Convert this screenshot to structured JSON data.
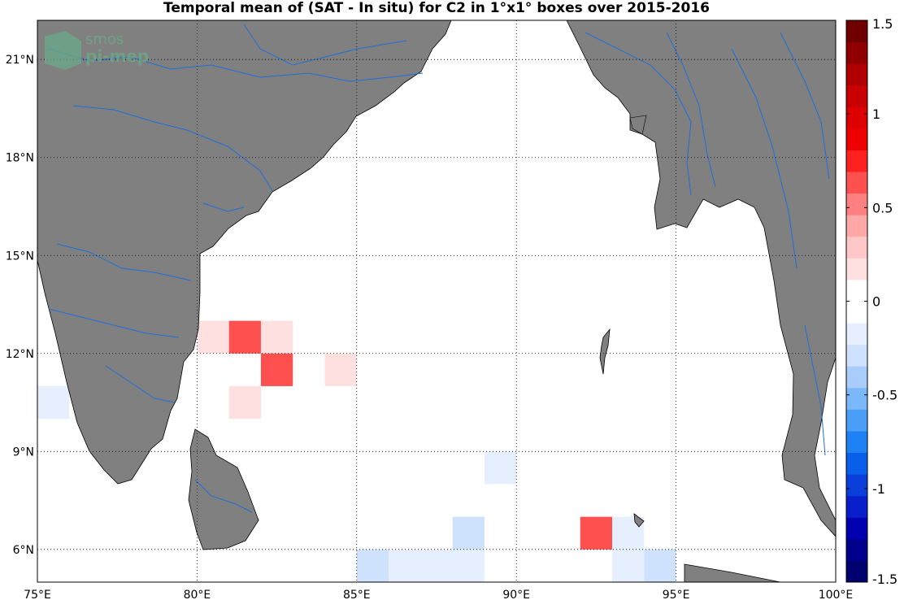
{
  "title": "Temporal mean of (SAT - In situ) for C2 in 1°x1° boxes over 2015-2016",
  "logo": {
    "line1": "smos",
    "line2": "pi-mep",
    "icon": "smos-pimep-logo"
  },
  "map": {
    "lon_range": [
      75,
      100
    ],
    "lat_range": [
      5,
      22.2
    ],
    "lon_ticks": [
      75,
      80,
      85,
      90,
      95,
      100
    ],
    "lat_ticks": [
      6,
      9,
      12,
      15,
      18,
      21
    ],
    "lon_tick_labels": [
      "75°E",
      "80°E",
      "85°E",
      "90°E",
      "95°E",
      "100°E"
    ],
    "lat_tick_labels": [
      "6°N",
      "9°N",
      "12°N",
      "15°N",
      "18°N",
      "21°N"
    ],
    "grid": true,
    "land_color": "#808080",
    "river_color": "#1f6fd8"
  },
  "chart_data": {
    "type": "heatmap",
    "title": "Temporal mean of (SAT - In situ) for C2 in 1°x1° boxes over 2015-2016",
    "cell_size_deg": 1,
    "cells": [
      {
        "lon": 80,
        "lat": 12,
        "value": 0.15
      },
      {
        "lon": 81,
        "lat": 12,
        "value": 0.65
      },
      {
        "lon": 82,
        "lat": 12,
        "value": 0.15
      },
      {
        "lon": 82,
        "lat": 11,
        "value": 0.65
      },
      {
        "lon": 84,
        "lat": 11,
        "value": 0.15
      },
      {
        "lon": 81,
        "lat": 10,
        "value": 0.15
      },
      {
        "lon": 75,
        "lat": 10,
        "value": -0.15
      },
      {
        "lon": 89,
        "lat": 8,
        "value": -0.15
      },
      {
        "lon": 88,
        "lat": 6,
        "value": -0.25
      },
      {
        "lon": 85,
        "lat": 5,
        "value": -0.25
      },
      {
        "lon": 86,
        "lat": 5,
        "value": -0.15
      },
      {
        "lon": 87,
        "lat": 5,
        "value": -0.15
      },
      {
        "lon": 88,
        "lat": 5,
        "value": -0.15
      },
      {
        "lon": 92,
        "lat": 6,
        "value": 0.65
      },
      {
        "lon": 93,
        "lat": 6,
        "value": -0.15
      },
      {
        "lon": 93,
        "lat": 5,
        "value": -0.15
      },
      {
        "lon": 94,
        "lat": 5,
        "value": -0.25
      }
    ],
    "colorbar": {
      "range": [
        -1.5,
        1.5
      ],
      "ticks": [
        -1.5,
        -1,
        -0.5,
        0,
        0.5,
        1,
        1.5
      ],
      "tick_labels": [
        "-1.5",
        "-1",
        "-0.5",
        "0",
        "0.5",
        "1",
        "1.5"
      ],
      "colors": [
        "#00006e",
        "#00008c",
        "#0000b0",
        "#0a1fcc",
        "#0a3fdc",
        "#0a5fea",
        "#1e82f5",
        "#4a9ef8",
        "#7ab8fa",
        "#a8cdfb",
        "#cfe2fd",
        "#e6effd",
        "#ffffff",
        "#ffffff",
        "#ffe0e0",
        "#ffc8c8",
        "#ffa8a8",
        "#ff8080",
        "#ff5050",
        "#ff2020",
        "#ee0000",
        "#dd0000",
        "#c80000",
        "#b00000",
        "#900000",
        "#700000"
      ]
    }
  }
}
